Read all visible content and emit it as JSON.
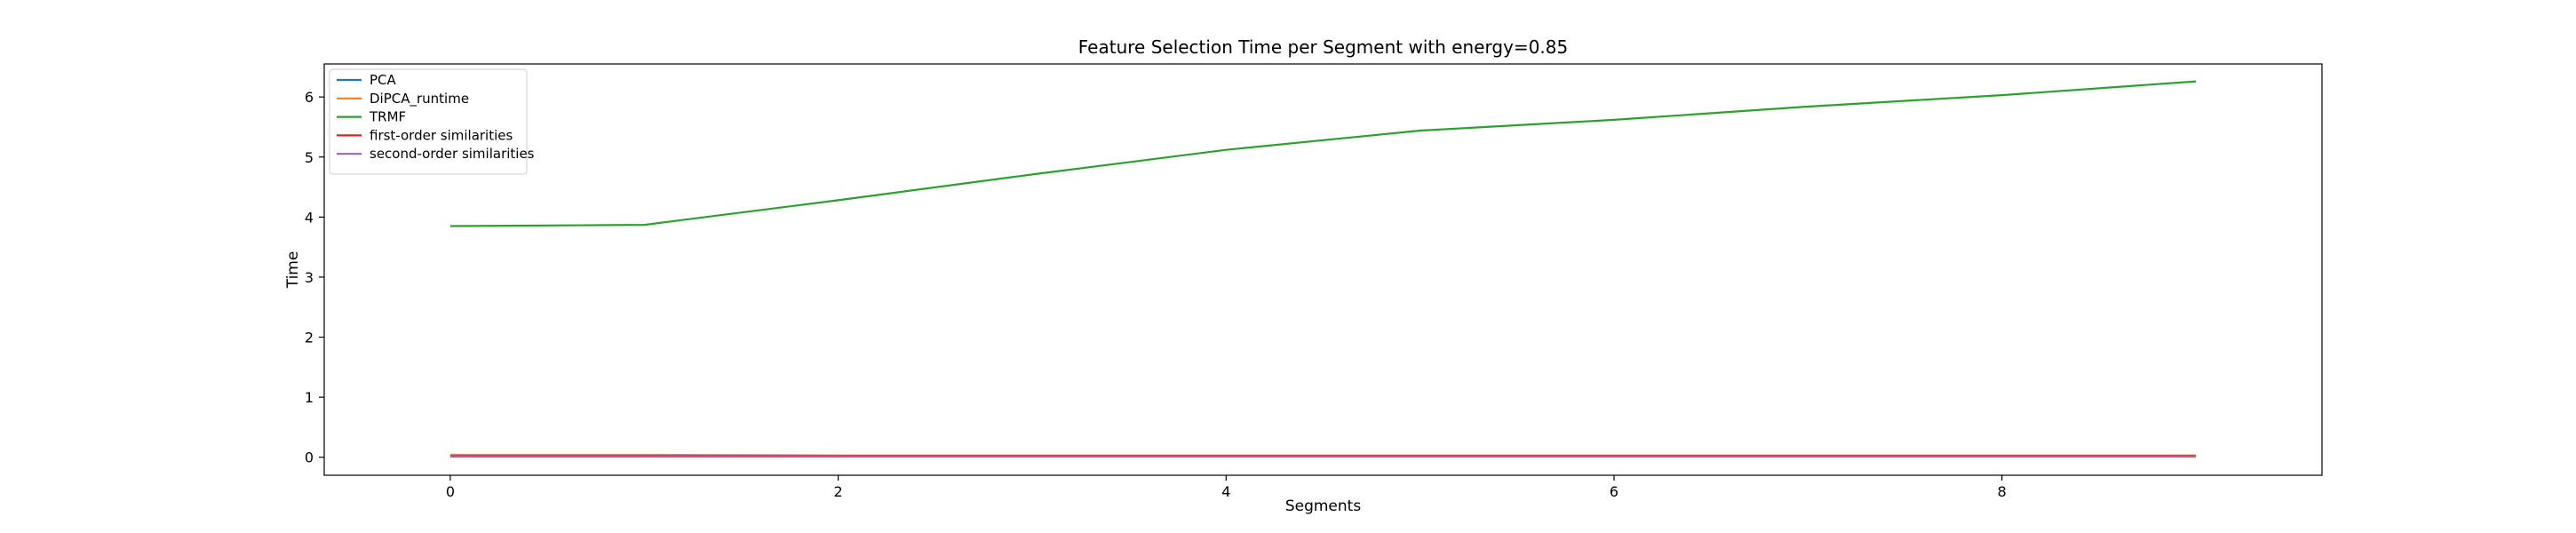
{
  "chart_data": {
    "type": "line",
    "title": "Feature Selection Time per Segment with energy=0.85",
    "xlabel": "Segments",
    "ylabel": "Time",
    "xlim": [
      -0.65,
      9.65
    ],
    "ylim": [
      -0.3,
      6.55
    ],
    "xticks": [
      0,
      2,
      4,
      6,
      8
    ],
    "yticks": [
      0,
      1,
      2,
      3,
      4,
      5,
      6
    ],
    "grid": false,
    "legend": "top-left",
    "x": [
      0,
      1,
      2,
      3,
      4,
      5,
      6,
      7,
      8,
      9
    ],
    "series": [
      {
        "name": "PCA",
        "color": "#1f77b4",
        "values": [
          0.03,
          0.03,
          0.02,
          0.02,
          0.02,
          0.02,
          0.02,
          0.02,
          0.02,
          0.02
        ]
      },
      {
        "name": "DiPCA_runtime",
        "color": "#ff7f0e",
        "values": [
          0.04,
          0.04,
          0.03,
          0.03,
          0.03,
          0.03,
          0.03,
          0.03,
          0.03,
          0.03
        ]
      },
      {
        "name": "TRMF",
        "color": "#2ca02c",
        "values": [
          3.85,
          3.87,
          4.28,
          4.71,
          5.12,
          5.44,
          5.62,
          5.84,
          6.03,
          6.26
        ]
      },
      {
        "name": "first-order similarities",
        "color": "#d62728",
        "values": [
          0.02,
          0.02,
          0.02,
          0.02,
          0.02,
          0.02,
          0.02,
          0.02,
          0.02,
          0.02
        ]
      },
      {
        "name": "second-order similarities",
        "color": "#9467bd",
        "values": [
          0.01,
          0.01,
          0.01,
          0.01,
          0.01,
          0.01,
          0.01,
          0.01,
          0.01,
          0.01
        ]
      }
    ]
  }
}
